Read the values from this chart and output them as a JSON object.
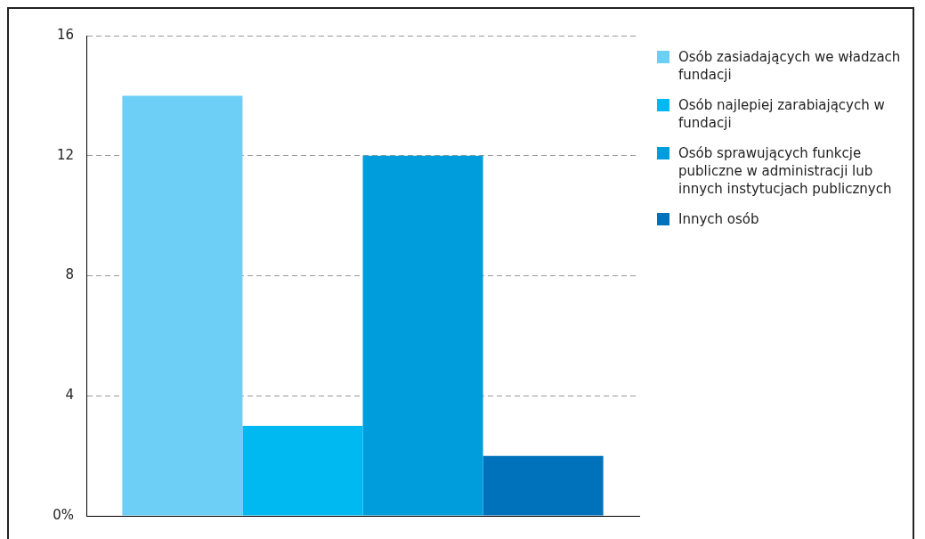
{
  "chart_data": {
    "type": "bar",
    "categories": [
      null
    ],
    "series": [
      {
        "name": "Osób zasiadających we władzach fundacji",
        "color": "#6dcff6",
        "values": [
          14
        ]
      },
      {
        "name": "Osób najlepiej zarabiających w fundacji",
        "color": "#00b9f1",
        "values": [
          3
        ]
      },
      {
        "name": "Osób sprawujących funkcje publiczne w administracji lub innych instytucjach publicznych",
        "color": "#009ddc",
        "values": [
          12
        ]
      },
      {
        "name": "Innych osób",
        "color": "#0072bc",
        "values": [
          2
        ]
      }
    ],
    "ylim": [
      0,
      16
    ],
    "yticks": [
      {
        "value": 0,
        "label": "0%"
      },
      4,
      8,
      12,
      16
    ],
    "grid": "y",
    "legend": "right",
    "tick_labels": "y"
  }
}
